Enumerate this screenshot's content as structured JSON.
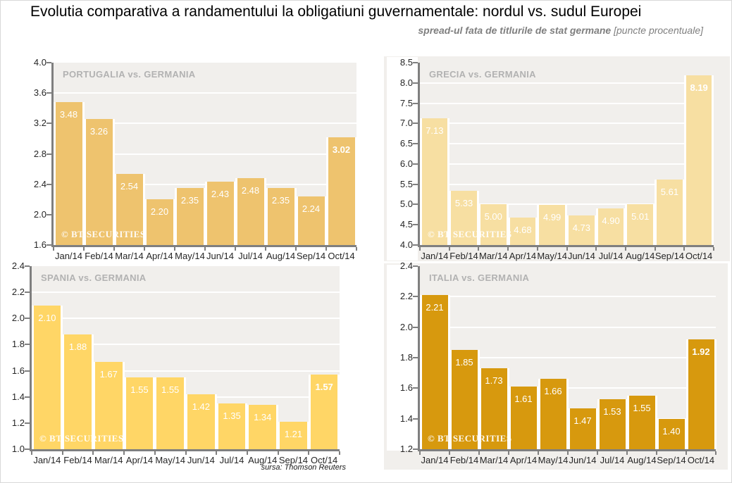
{
  "header": {
    "title": "Evolutia comparativa a randamentului la obligatiuni guvernamentale: nordul vs. sudul Europei",
    "subtitle_main": "spread-ul fata de titlurile de stat germane",
    "subtitle_unit": " [puncte procentuale]"
  },
  "footer": {
    "source": "sursa: Thomson Reuters"
  },
  "watermark": "© BT SECURITIES",
  "colors": {
    "portugalia_bar": "#eec36e",
    "grecia_bar": "#f7dfa2",
    "spania_bar": "#ffd666",
    "italia_bar": "#d7990e",
    "plot_background": "#f1efec",
    "gridline": "#ffffff",
    "axis": "#7f7f7f",
    "chart_title_text": "#b2b2b2",
    "value_label_text": "#ffffff",
    "title_text": "#000000",
    "subtitle_text": "#7f7f7f"
  },
  "chart_data": [
    {
      "id": "portugalia",
      "type": "bar",
      "title": "PORTUGALIA vs. GERMANIA",
      "categories": [
        "Jan/14",
        "Feb/14",
        "Mar/14",
        "Apr/14",
        "May/14",
        "Jun/14",
        "Jul/14",
        "Aug/14",
        "Sep/14",
        "Oct/14"
      ],
      "values": [
        3.48,
        3.26,
        2.54,
        2.2,
        2.35,
        2.43,
        2.48,
        2.35,
        2.24,
        3.02
      ],
      "xlabel": "",
      "ylabel": "",
      "ylim": [
        1.6,
        4.0
      ],
      "ytick_step": 0.4,
      "grid": "horizontal-white",
      "legend": "none",
      "bar_color": "#eec36e",
      "last_value_bold": true,
      "watermark": true
    },
    {
      "id": "grecia",
      "type": "bar",
      "title": "GRECIA vs. GERMANIA",
      "categories": [
        "Jan/14",
        "Feb/14",
        "Mar/14",
        "Apr/14",
        "May/14",
        "Jun/14",
        "Jul/14",
        "Aug/14",
        "Sep/14",
        "Oct/14"
      ],
      "values": [
        7.13,
        5.33,
        5.0,
        4.68,
        4.99,
        4.73,
        4.9,
        5.01,
        5.61,
        8.19
      ],
      "xlabel": "",
      "ylabel": "",
      "ylim": [
        4.0,
        8.5
      ],
      "ytick_step": 0.5,
      "grid": "horizontal-white",
      "legend": "none",
      "bar_color": "#f7dfa2",
      "last_value_bold": true,
      "watermark": true
    },
    {
      "id": "spania",
      "type": "bar",
      "title": "SPANIA vs. GERMANIA",
      "categories": [
        "Jan/14",
        "Feb/14",
        "Mar/14",
        "Apr/14",
        "May/14",
        "Jun/14",
        "Jul/14",
        "Aug/14",
        "Sep/14",
        "Oct/14"
      ],
      "values": [
        2.1,
        1.88,
        1.67,
        1.55,
        1.55,
        1.42,
        1.35,
        1.34,
        1.21,
        1.57
      ],
      "xlabel": "",
      "ylabel": "",
      "ylim": [
        1.0,
        2.4
      ],
      "ytick_step": 0.2,
      "grid": "horizontal-white",
      "legend": "none",
      "bar_color": "#ffd666",
      "last_value_bold": true,
      "watermark": true
    },
    {
      "id": "italia",
      "type": "bar",
      "title": "ITALIA vs. GERMANIA",
      "categories": [
        "Jan/14",
        "Feb/14",
        "Mar/14",
        "Apr/14",
        "May/14",
        "Jun/14",
        "Jul/14",
        "Aug/14",
        "Sep/14",
        "Oct/14"
      ],
      "values": [
        2.21,
        1.85,
        1.73,
        1.61,
        1.66,
        1.47,
        1.53,
        1.55,
        1.4,
        1.92
      ],
      "xlabel": "",
      "ylabel": "",
      "ylim": [
        1.2,
        2.4
      ],
      "ytick_step": 0.2,
      "grid": "horizontal-white",
      "legend": "none",
      "bar_color": "#d7990e",
      "last_value_bold": true,
      "watermark": true
    }
  ]
}
